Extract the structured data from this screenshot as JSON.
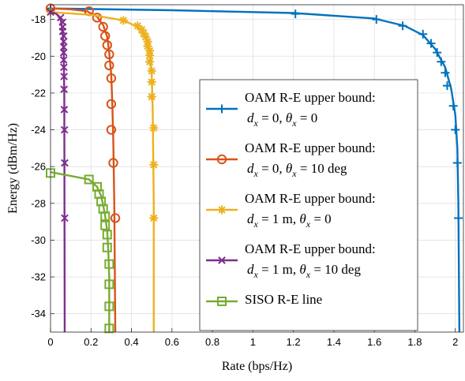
{
  "chart_data": {
    "type": "line",
    "xlabel": "Rate (bps/Hz)",
    "ylabel": "Energy (dBm/Hz)",
    "xlim": [
      0,
      2.04
    ],
    "ylim": [
      -35,
      -17.2
    ],
    "xticks": [
      "0",
      "0.2",
      "0.4",
      "0.6",
      "0.8",
      "1",
      "1.2",
      "1.4",
      "1.6",
      "1.8",
      "2"
    ],
    "yticks": [
      "-18",
      "-20",
      "-22",
      "-24",
      "-26",
      "-28",
      "-30",
      "-32",
      "-34"
    ],
    "grid": true,
    "legend_position": "right",
    "series": [
      {
        "name": "OAM R-E upper bound:",
        "legend_params": {
          "d": "0",
          "theta": "0"
        },
        "color": "#0072BD",
        "marker": "plus",
        "line": [
          [
            0,
            -17.4
          ],
          [
            0.6,
            -17.5
          ],
          [
            1.2,
            -17.65
          ],
          [
            1.6,
            -17.95
          ],
          [
            1.75,
            -18.35
          ],
          [
            1.84,
            -18.85
          ],
          [
            1.9,
            -19.6
          ],
          [
            1.95,
            -20.6
          ],
          [
            1.98,
            -21.8
          ],
          [
            2.0,
            -23.2
          ],
          [
            2.01,
            -25.0
          ],
          [
            2.015,
            -28.0
          ],
          [
            2.02,
            -35.0
          ]
        ],
        "markers": [
          [
            0,
            -17.4
          ],
          [
            1.21,
            -17.7
          ],
          [
            1.61,
            -18.0
          ],
          [
            1.74,
            -18.35
          ],
          [
            1.84,
            -18.8
          ],
          [
            1.88,
            -19.3
          ],
          [
            1.91,
            -19.8
          ],
          [
            1.93,
            -20.3
          ],
          [
            1.95,
            -20.9
          ],
          [
            1.96,
            -21.6
          ],
          [
            1.99,
            -22.7
          ],
          [
            2.0,
            -24.0
          ],
          [
            2.01,
            -25.8
          ],
          [
            2.015,
            -28.8
          ]
        ]
      },
      {
        "name": "OAM R-E upper bound:",
        "legend_params": {
          "d": "0",
          "theta": "10 deg"
        },
        "color": "#D95319",
        "marker": "circle",
        "line": [
          [
            0,
            -17.4
          ],
          [
            0.1,
            -17.45
          ],
          [
            0.18,
            -17.55
          ],
          [
            0.23,
            -17.85
          ],
          [
            0.26,
            -18.3
          ],
          [
            0.28,
            -18.95
          ],
          [
            0.29,
            -19.8
          ],
          [
            0.3,
            -21.0
          ],
          [
            0.305,
            -22.5
          ],
          [
            0.31,
            -24.5
          ],
          [
            0.315,
            -28.0
          ],
          [
            0.32,
            -35.0
          ]
        ],
        "markers": [
          [
            0,
            -17.4
          ],
          [
            0.19,
            -17.55
          ],
          [
            0.23,
            -17.9
          ],
          [
            0.26,
            -18.4
          ],
          [
            0.27,
            -18.9
          ],
          [
            0.28,
            -19.4
          ],
          [
            0.29,
            -19.9
          ],
          [
            0.29,
            -20.5
          ],
          [
            0.3,
            -21.2
          ],
          [
            0.3,
            -22.6
          ],
          [
            0.3,
            -24.0
          ],
          [
            0.31,
            -25.8
          ],
          [
            0.32,
            -28.8
          ]
        ]
      },
      {
        "name": "OAM R-E upper bound:",
        "legend_params": {
          "d": "1 m",
          "theta": "0"
        },
        "color": "#EDB120",
        "marker": "asterisk",
        "line": [
          [
            0,
            -17.6
          ],
          [
            0.2,
            -17.75
          ],
          [
            0.36,
            -18.05
          ],
          [
            0.43,
            -18.4
          ],
          [
            0.47,
            -18.9
          ],
          [
            0.49,
            -19.7
          ],
          [
            0.5,
            -21.0
          ],
          [
            0.505,
            -23.0
          ],
          [
            0.51,
            -28.0
          ],
          [
            0.51,
            -35.0
          ]
        ],
        "markers": [
          [
            0,
            -17.6
          ],
          [
            0.36,
            -18.05
          ],
          [
            0.43,
            -18.35
          ],
          [
            0.45,
            -18.55
          ],
          [
            0.46,
            -18.75
          ],
          [
            0.47,
            -18.95
          ],
          [
            0.48,
            -19.2
          ],
          [
            0.48,
            -19.45
          ],
          [
            0.49,
            -19.7
          ],
          [
            0.49,
            -19.95
          ],
          [
            0.49,
            -20.3
          ],
          [
            0.5,
            -20.8
          ],
          [
            0.5,
            -21.4
          ],
          [
            0.5,
            -22.2
          ],
          [
            0.51,
            -23.9
          ],
          [
            0.51,
            -25.9
          ],
          [
            0.51,
            -28.8
          ]
        ]
      },
      {
        "name": "OAM R-E upper bound:",
        "legend_params": {
          "d": "1 m",
          "theta": "10 deg"
        },
        "color": "#7E2F8E",
        "marker": "cross",
        "line": [
          [
            0,
            -17.6
          ],
          [
            0.03,
            -17.7
          ],
          [
            0.05,
            -18.0
          ],
          [
            0.06,
            -18.6
          ],
          [
            0.065,
            -19.8
          ],
          [
            0.068,
            -22.0
          ],
          [
            0.07,
            -35.0
          ]
        ],
        "markers": [
          [
            0,
            -17.6
          ],
          [
            0.05,
            -17.9
          ],
          [
            0.06,
            -18.15
          ],
          [
            0.06,
            -18.4
          ],
          [
            0.06,
            -18.65
          ],
          [
            0.065,
            -18.9
          ],
          [
            0.065,
            -19.2
          ],
          [
            0.065,
            -19.5
          ],
          [
            0.065,
            -19.8
          ],
          [
            0.065,
            -20.2
          ],
          [
            0.066,
            -20.6
          ],
          [
            0.067,
            -21.1
          ],
          [
            0.067,
            -21.8
          ],
          [
            0.068,
            -22.9
          ],
          [
            0.069,
            -24.0
          ],
          [
            0.07,
            -25.8
          ],
          [
            0.07,
            -28.8
          ]
        ]
      },
      {
        "name": "SISO R-E line",
        "legend_params": null,
        "color": "#77AC30",
        "marker": "square",
        "line": [
          [
            0,
            -26.3
          ],
          [
            0.19,
            -26.7
          ],
          [
            0.23,
            -27.1
          ],
          [
            0.25,
            -27.6
          ],
          [
            0.26,
            -28.1
          ],
          [
            0.27,
            -28.7
          ],
          [
            0.28,
            -29.5
          ],
          [
            0.285,
            -30.5
          ],
          [
            0.29,
            -32.0
          ],
          [
            0.29,
            -35.0
          ]
        ],
        "markers": [
          [
            0,
            -26.35
          ],
          [
            0.19,
            -26.7
          ],
          [
            0.23,
            -27.1
          ],
          [
            0.24,
            -27.5
          ],
          [
            0.25,
            -27.9
          ],
          [
            0.26,
            -28.3
          ],
          [
            0.27,
            -28.7
          ],
          [
            0.27,
            -29.2
          ],
          [
            0.28,
            -29.7
          ],
          [
            0.28,
            -30.4
          ],
          [
            0.29,
            -31.3
          ],
          [
            0.29,
            -32.4
          ],
          [
            0.29,
            -33.6
          ],
          [
            0.29,
            -34.8
          ]
        ]
      }
    ]
  }
}
